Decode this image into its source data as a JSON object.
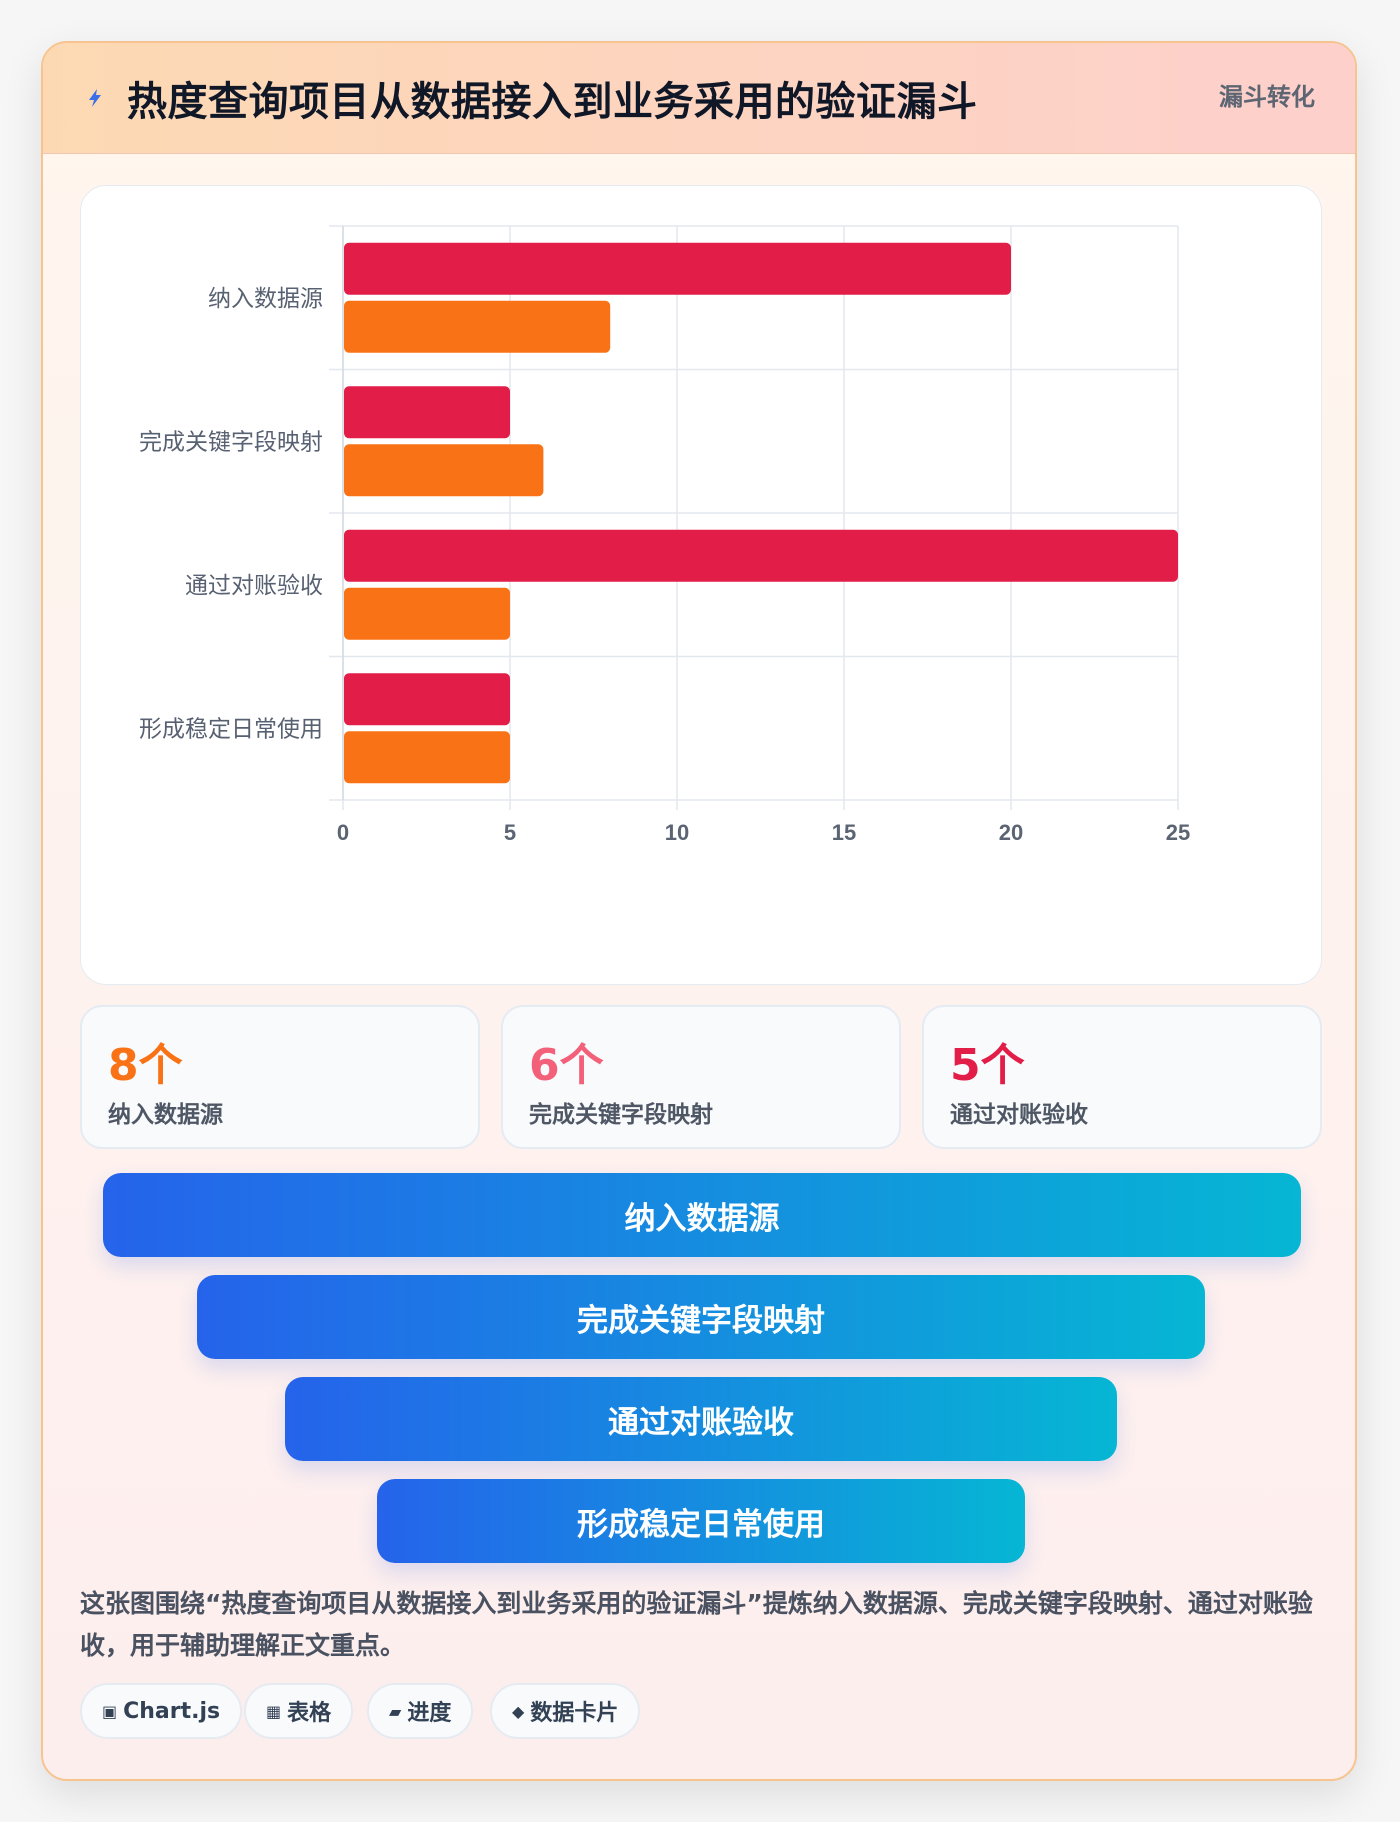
{
  "header": {
    "title": "热度查询项目从数据接入到业务采用的验证漏斗",
    "badge": "漏斗转化",
    "icon": "lightning-icon"
  },
  "chart_data": {
    "type": "bar",
    "orientation": "horizontal",
    "categories": [
      "纳入数据源",
      "完成关键字段映射",
      "通过对账验收",
      "形成稳定日常使用"
    ],
    "series": [
      {
        "color": "#e11d48",
        "values": [
          20,
          5,
          25,
          5
        ]
      },
      {
        "color": "#f97316",
        "values": [
          8,
          6,
          5,
          5
        ]
      }
    ],
    "xlim": [
      0,
      25
    ],
    "xticks": [
      "0",
      "5",
      "10",
      "15",
      "20",
      "25"
    ],
    "grid": true
  },
  "stats": [
    {
      "value": "8个",
      "label": "纳入数据源",
      "color": "#f97316"
    },
    {
      "value": "6个",
      "label": "完成关键字段映射",
      "color": "#f26179"
    },
    {
      "value": "5个",
      "label": "通过对账验收",
      "color": "#e11d48"
    }
  ],
  "funnel": [
    {
      "label": "纳入数据源"
    },
    {
      "label": "完成关键字段映射"
    },
    {
      "label": "通过对账验收"
    },
    {
      "label": "形成稳定日常使用"
    }
  ],
  "description": "这张图围绕“热度查询项目从数据接入到业务采用的验证漏斗”提炼纳入数据源、完成关键字段映射、通过对账验收，用于辅助理解正文重点。",
  "chips": [
    {
      "icon": "▣",
      "label": "Chart.js"
    },
    {
      "icon": "▦",
      "label": "表格"
    },
    {
      "icon": "▰",
      "label": "进度"
    },
    {
      "icon": "◆",
      "label": "数据卡片"
    }
  ]
}
